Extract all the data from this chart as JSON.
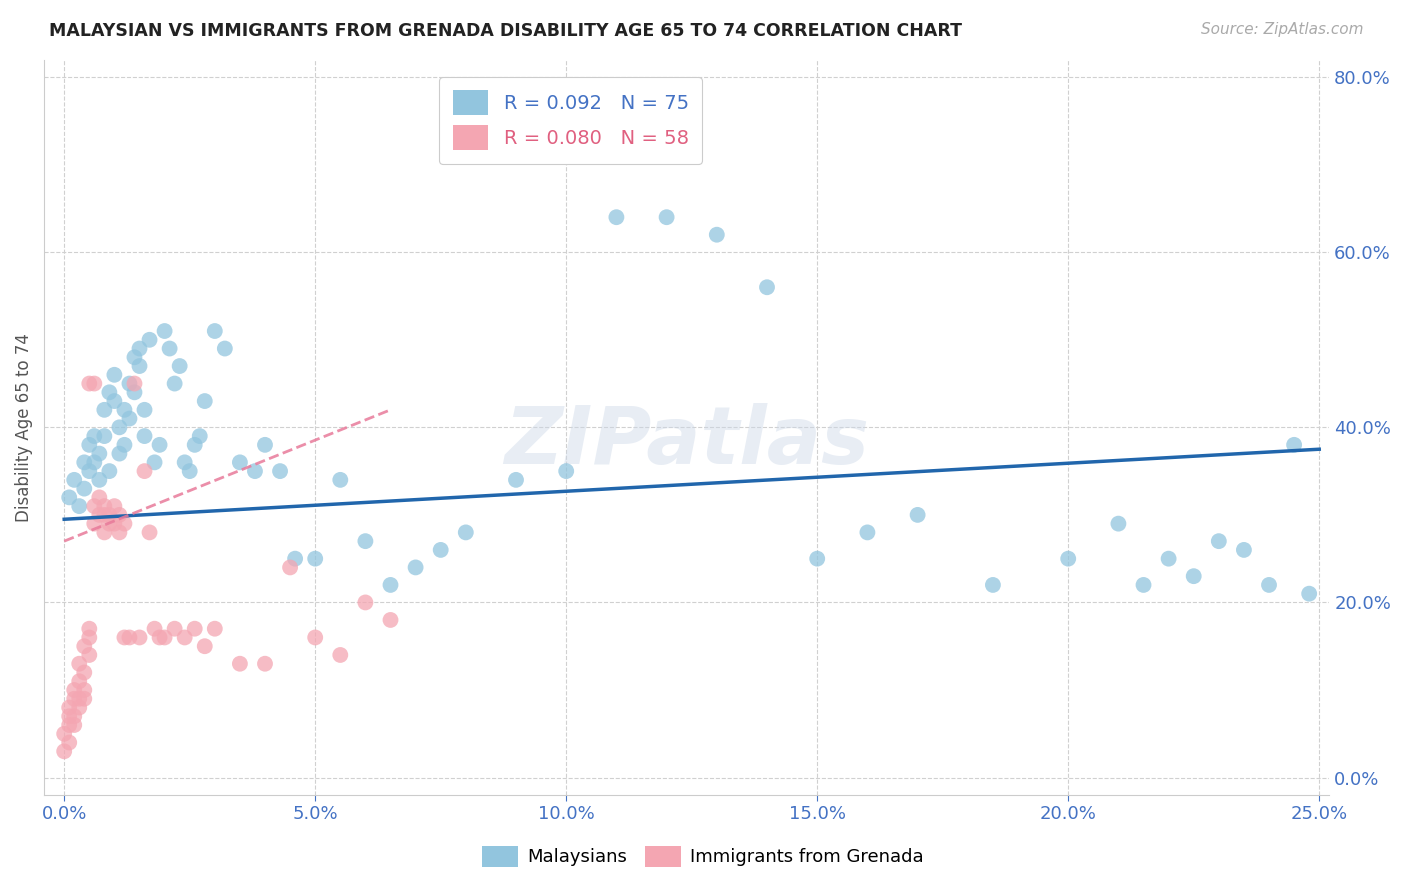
{
  "title": "MALAYSIAN VS IMMIGRANTS FROM GRENADA DISABILITY AGE 65 TO 74 CORRELATION CHART",
  "source": "Source: ZipAtlas.com",
  "ylabel": "Disability Age 65 to 74",
  "R1": 0.092,
  "N1": 75,
  "R2": 0.08,
  "N2": 58,
  "color_blue": "#92c5de",
  "color_pink": "#f4a6b2",
  "trendline_blue": "#2166ac",
  "trendline_pink": "#e87a9a",
  "watermark": "ZIPatlas",
  "legend_label1": "Malaysians",
  "legend_label2": "Immigrants from Grenada",
  "blue_points_x": [
    0.001,
    0.002,
    0.003,
    0.004,
    0.004,
    0.005,
    0.005,
    0.006,
    0.006,
    0.007,
    0.007,
    0.008,
    0.008,
    0.009,
    0.009,
    0.01,
    0.01,
    0.011,
    0.011,
    0.012,
    0.012,
    0.013,
    0.013,
    0.014,
    0.014,
    0.015,
    0.015,
    0.016,
    0.016,
    0.017,
    0.018,
    0.019,
    0.02,
    0.021,
    0.022,
    0.023,
    0.024,
    0.025,
    0.026,
    0.027,
    0.028,
    0.03,
    0.032,
    0.035,
    0.038,
    0.04,
    0.043,
    0.046,
    0.05,
    0.055,
    0.06,
    0.065,
    0.07,
    0.075,
    0.08,
    0.09,
    0.1,
    0.11,
    0.12,
    0.13,
    0.14,
    0.15,
    0.16,
    0.17,
    0.185,
    0.2,
    0.21,
    0.215,
    0.22,
    0.225,
    0.23,
    0.235,
    0.24,
    0.245,
    0.248
  ],
  "blue_points_y": [
    0.32,
    0.34,
    0.31,
    0.36,
    0.33,
    0.35,
    0.38,
    0.36,
    0.39,
    0.34,
    0.37,
    0.42,
    0.39,
    0.35,
    0.44,
    0.43,
    0.46,
    0.37,
    0.4,
    0.42,
    0.38,
    0.45,
    0.41,
    0.48,
    0.44,
    0.47,
    0.49,
    0.39,
    0.42,
    0.5,
    0.36,
    0.38,
    0.51,
    0.49,
    0.45,
    0.47,
    0.36,
    0.35,
    0.38,
    0.39,
    0.43,
    0.51,
    0.49,
    0.36,
    0.35,
    0.38,
    0.35,
    0.25,
    0.25,
    0.34,
    0.27,
    0.22,
    0.24,
    0.26,
    0.28,
    0.34,
    0.35,
    0.64,
    0.64,
    0.62,
    0.56,
    0.25,
    0.28,
    0.3,
    0.22,
    0.25,
    0.29,
    0.22,
    0.25,
    0.23,
    0.27,
    0.26,
    0.22,
    0.38,
    0.21
  ],
  "pink_points_x": [
    0.0,
    0.0,
    0.001,
    0.001,
    0.001,
    0.001,
    0.002,
    0.002,
    0.002,
    0.002,
    0.003,
    0.003,
    0.003,
    0.003,
    0.004,
    0.004,
    0.004,
    0.004,
    0.005,
    0.005,
    0.005,
    0.005,
    0.006,
    0.006,
    0.006,
    0.007,
    0.007,
    0.008,
    0.008,
    0.008,
    0.009,
    0.009,
    0.01,
    0.01,
    0.011,
    0.011,
    0.012,
    0.012,
    0.013,
    0.014,
    0.015,
    0.016,
    0.017,
    0.018,
    0.019,
    0.02,
    0.022,
    0.024,
    0.026,
    0.028,
    0.03,
    0.035,
    0.04,
    0.045,
    0.05,
    0.055,
    0.06,
    0.065
  ],
  "pink_points_y": [
    0.03,
    0.05,
    0.06,
    0.04,
    0.07,
    0.08,
    0.09,
    0.07,
    0.06,
    0.1,
    0.11,
    0.09,
    0.08,
    0.13,
    0.1,
    0.12,
    0.09,
    0.15,
    0.16,
    0.14,
    0.17,
    0.45,
    0.45,
    0.31,
    0.29,
    0.3,
    0.32,
    0.3,
    0.28,
    0.31,
    0.29,
    0.3,
    0.29,
    0.31,
    0.3,
    0.28,
    0.29,
    0.16,
    0.16,
    0.45,
    0.16,
    0.35,
    0.28,
    0.17,
    0.16,
    0.16,
    0.17,
    0.16,
    0.17,
    0.15,
    0.17,
    0.13,
    0.13,
    0.24,
    0.16,
    0.14,
    0.2,
    0.18
  ]
}
